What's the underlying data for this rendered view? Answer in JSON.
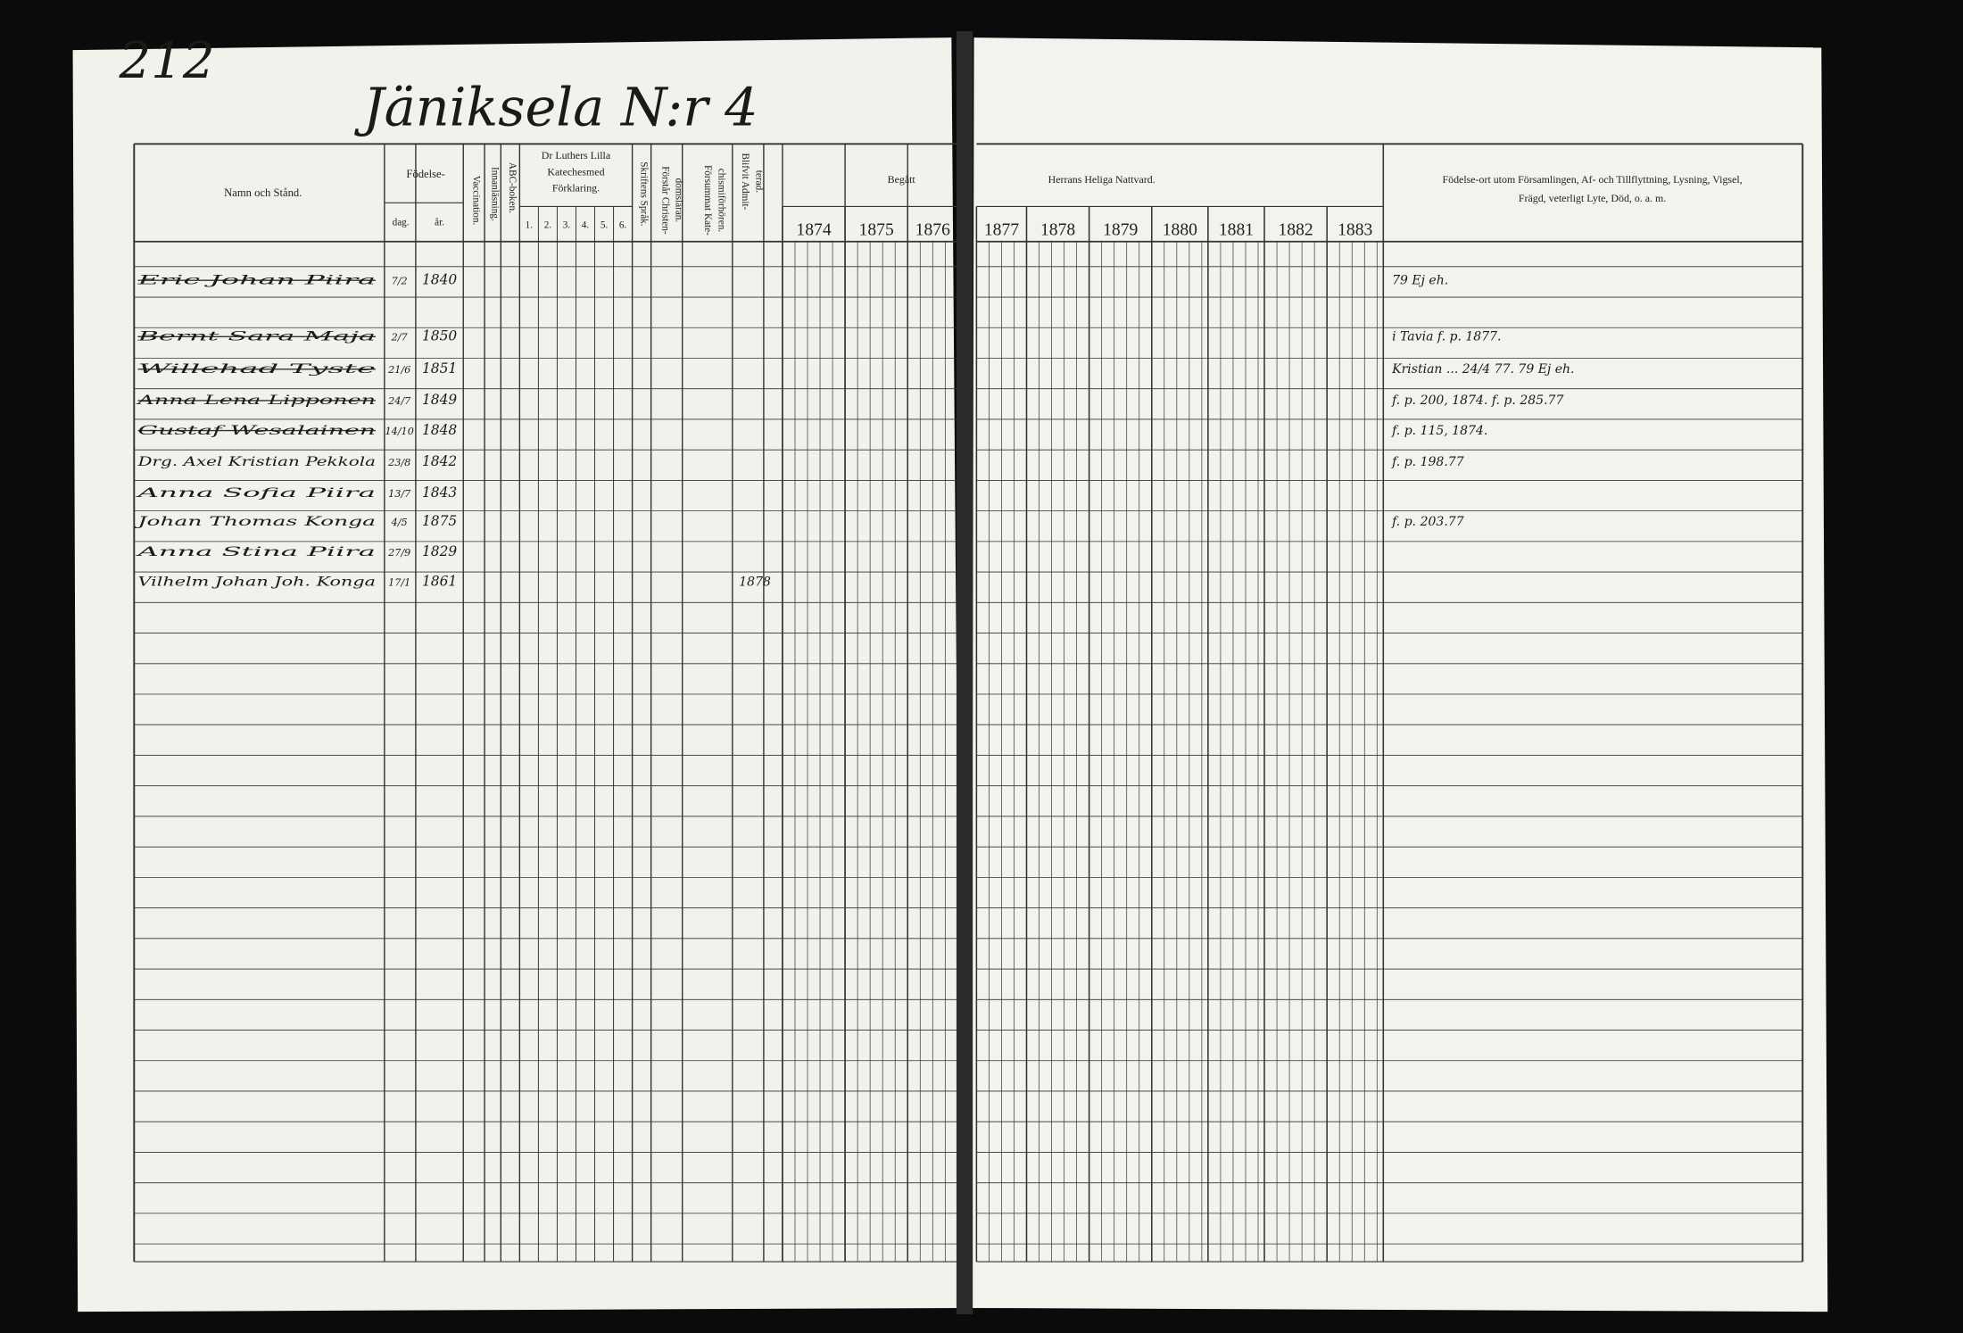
{
  "page_number": "212",
  "title": "Jäniksela N:r 4",
  "header": {
    "name": "Namn och Stånd.",
    "birth": "Födelse-",
    "day": "dag.",
    "year": "år.",
    "vaccination": "Vaccination.",
    "reading": "Innanläsning.",
    "abc": "ABC-boken.",
    "catechism": [
      "Dr Luthers Lilla",
      "Katechesmed",
      "Förklaring."
    ],
    "catechism_parts": [
      "1.",
      "2.",
      "3.",
      "4.",
      "5.",
      "6."
    ],
    "scripture": "Skriftens Språk.",
    "understands": [
      "Förstår Christen-",
      "domsläran."
    ],
    "missed": [
      "Försummat Kate-",
      "chismiförhören."
    ],
    "admitted": [
      "Blifvit Admit-",
      "terad."
    ],
    "communion_left": "Begått",
    "communion_right": "Herrans Heliga Nattvard.",
    "years": [
      "1874",
      "1875",
      "1876",
      "1877",
      "1878",
      "1879",
      "1880",
      "1881",
      "1882",
      "1883"
    ],
    "remarks": [
      "Födelse-ort utom Församlingen, Af- och Tillflyttning, Lysning, Vigsel,",
      "Frägd, veterligt Lyte, Död, o. a. m."
    ]
  },
  "rows": [
    {
      "name": "Eric Johan Piira",
      "day": "7/2",
      "year": "1840",
      "admitted": "",
      "remark": "79 Ej eh."
    },
    {
      "name": "Bernt Sara Maja",
      "day": "2/7",
      "year": "1850",
      "admitted": "",
      "remark": "i Tavia f. p. 1877."
    },
    {
      "name": "Willehad Tyste",
      "day": "21/6",
      "year": "1851",
      "admitted": "",
      "remark": "Kristian ... 24/4 77. 79 Ej eh."
    },
    {
      "name": "Anna Lena Lipponen",
      "day": "24/7",
      "year": "1849",
      "admitted": "",
      "remark": "f. p. 200, 1874. f. p. 285.77"
    },
    {
      "name": "Gustaf Wesalainen",
      "day": "14/10",
      "year": "1848",
      "admitted": "",
      "remark": "f. p. 115, 1874."
    },
    {
      "name": "Drg. Axel Kristian Pekkola",
      "day": "23/8",
      "year": "1842",
      "admitted": "",
      "remark": "f. p. 198.77"
    },
    {
      "name": "Anna Sofia Piira",
      "day": "13/7",
      "year": "1843",
      "admitted": "",
      "remark": ""
    },
    {
      "name": "Johan Thomas Konga",
      "day": "4/5",
      "year": "1875",
      "admitted": "",
      "remark": "f. p. 203.77"
    },
    {
      "name": "Anna Stina Piira",
      "day": "27/9",
      "year": "1829",
      "admitted": "",
      "remark": ""
    },
    {
      "name": "Vilhelm Johan Joh. Konga",
      "day": "17/1",
      "year": "1861",
      "admitted": "1878",
      "remark": ""
    }
  ]
}
